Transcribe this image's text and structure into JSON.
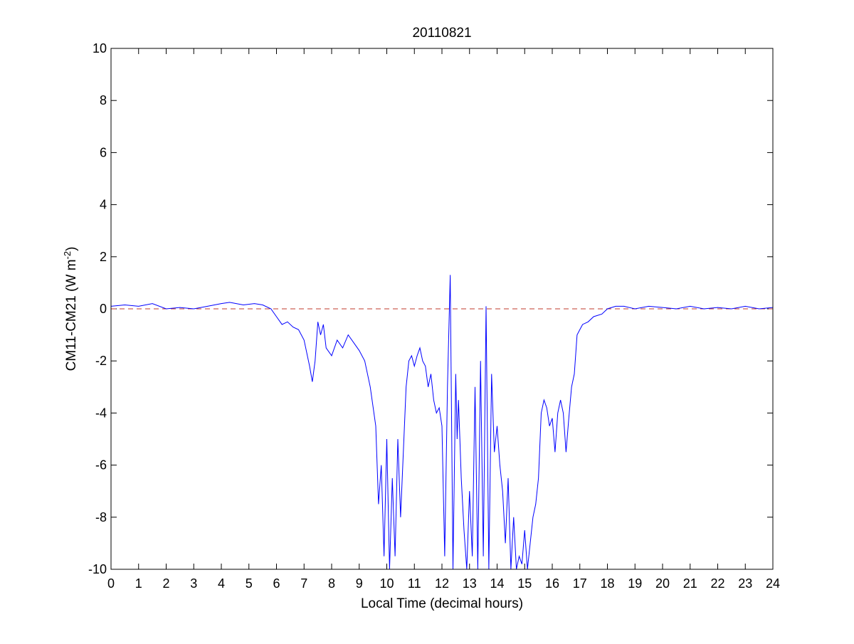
{
  "chart_data": {
    "type": "line",
    "title": "20110821",
    "xlabel": "Local Time (decimal hours)",
    "ylabel": {
      "base": "CM11-CM21 (W m",
      "superscript": "-2",
      "close": ")"
    },
    "xlim": [
      0,
      24
    ],
    "ylim": [
      -10,
      10
    ],
    "xticks": [
      0,
      1,
      2,
      3,
      4,
      5,
      6,
      7,
      8,
      9,
      10,
      11,
      12,
      13,
      14,
      15,
      16,
      17,
      18,
      19,
      20,
      21,
      22,
      23,
      24
    ],
    "yticks": [
      -10,
      -8,
      -6,
      -4,
      -2,
      0,
      2,
      4,
      6,
      8,
      10
    ],
    "grid": false,
    "legend": "none",
    "series": [
      {
        "color": "#0000ff",
        "x": [
          0,
          0.5,
          1.0,
          1.5,
          2.0,
          2.5,
          3.0,
          3.5,
          4.0,
          4.3,
          4.8,
          5.2,
          5.5,
          5.8,
          6.0,
          6.2,
          6.4,
          6.6,
          6.8,
          7.0,
          7.2,
          7.3,
          7.4,
          7.5,
          7.6,
          7.7,
          7.8,
          8.0,
          8.2,
          8.4,
          8.6,
          8.8,
          9.0,
          9.2,
          9.4,
          9.6,
          9.7,
          9.8,
          9.9,
          10.0,
          10.1,
          10.2,
          10.3,
          10.4,
          10.5,
          10.6,
          10.7,
          10.8,
          10.9,
          11.0,
          11.1,
          11.2,
          11.3,
          11.4,
          11.5,
          11.6,
          11.7,
          11.8,
          11.9,
          12.0,
          12.1,
          12.2,
          12.3,
          12.4,
          12.5,
          12.55,
          12.6,
          12.7,
          12.8,
          12.9,
          13.0,
          13.1,
          13.2,
          13.3,
          13.4,
          13.5,
          13.6,
          13.7,
          13.8,
          13.9,
          14.0,
          14.1,
          14.2,
          14.3,
          14.4,
          14.5,
          14.6,
          14.7,
          14.8,
          14.9,
          15.0,
          15.1,
          15.2,
          15.3,
          15.4,
          15.5,
          15.6,
          15.7,
          15.8,
          15.9,
          16.0,
          16.1,
          16.2,
          16.3,
          16.4,
          16.5,
          16.6,
          16.7,
          16.8,
          16.9,
          17.0,
          17.1,
          17.3,
          17.5,
          17.8,
          18.0,
          18.3,
          18.6,
          19.0,
          19.5,
          20.0,
          20.5,
          21.0,
          21.5,
          22.0,
          22.5,
          23.0,
          23.5,
          24.0
        ],
        "y": [
          0.1,
          0.15,
          0.1,
          0.2,
          0.0,
          0.05,
          0.0,
          0.1,
          0.2,
          0.25,
          0.15,
          0.2,
          0.15,
          0.0,
          -0.3,
          -0.6,
          -0.5,
          -0.7,
          -0.8,
          -1.2,
          -2.2,
          -2.8,
          -2.0,
          -0.5,
          -1.0,
          -0.6,
          -1.5,
          -1.8,
          -1.2,
          -1.5,
          -1.0,
          -1.3,
          -1.6,
          -2.0,
          -3.0,
          -4.5,
          -7.5,
          -6.0,
          -9.5,
          -5.0,
          -10.0,
          -6.5,
          -9.5,
          -5.0,
          -8.0,
          -5.5,
          -3.0,
          -2.0,
          -1.8,
          -2.2,
          -1.8,
          -1.5,
          -2.0,
          -2.2,
          -3.0,
          -2.5,
          -3.5,
          -4.0,
          -3.8,
          -4.5,
          -9.5,
          -3.0,
          1.3,
          -10.0,
          -2.5,
          -5.0,
          -3.5,
          -6.5,
          -8.5,
          -10.0,
          -7.0,
          -9.5,
          -3.0,
          -10.0,
          -2.0,
          -9.5,
          0.1,
          -10.0,
          -2.5,
          -5.5,
          -4.5,
          -6.0,
          -7.0,
          -9.0,
          -6.5,
          -10.0,
          -8.0,
          -10.0,
          -9.5,
          -9.8,
          -8.5,
          -10.0,
          -9.0,
          -8.0,
          -7.5,
          -6.5,
          -4.0,
          -3.5,
          -3.8,
          -4.5,
          -4.2,
          -5.5,
          -4.0,
          -3.5,
          -4.0,
          -5.5,
          -4.2,
          -3.0,
          -2.5,
          -1.0,
          -0.8,
          -0.6,
          -0.5,
          -0.3,
          -0.2,
          0.0,
          0.1,
          0.1,
          0.0,
          0.1,
          0.05,
          0.0,
          0.1,
          0.0,
          0.05,
          0.0,
          0.1,
          0.0,
          0.05
        ]
      },
      {
        "color": "#c0392b",
        "style": "dashed",
        "x": [
          0,
          24
        ],
        "y": [
          0,
          0
        ]
      }
    ]
  }
}
